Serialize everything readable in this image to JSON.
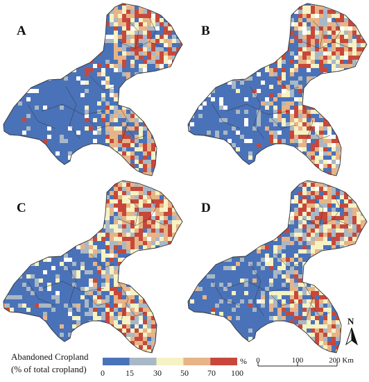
{
  "panels": [
    {
      "id": "A",
      "label": "A",
      "weights": [
        0.62,
        0.1,
        0.08,
        0.08,
        0.07,
        0.05
      ]
    },
    {
      "id": "B",
      "label": "B",
      "weights": [
        0.48,
        0.13,
        0.1,
        0.1,
        0.12,
        0.07
      ]
    },
    {
      "id": "C",
      "label": "C",
      "weights": [
        0.4,
        0.16,
        0.2,
        0.14,
        0.08,
        0.02
      ]
    },
    {
      "id": "D",
      "label": "D",
      "weights": [
        0.52,
        0.16,
        0.17,
        0.1,
        0.04,
        0.01
      ]
    }
  ],
  "legend": {
    "title_line1": "Abandoned Cropland",
    "title_line2": "(% of total cropland)",
    "unit": "%",
    "ticks": [
      "0",
      "15",
      "30",
      "50",
      "70",
      "100"
    ],
    "bins": [
      {
        "range": "0-15",
        "color": "#4a72b8"
      },
      {
        "range": "15-30",
        "color": "#a9b8c6"
      },
      {
        "range": "30-50",
        "color": "#f5f2c3"
      },
      {
        "range": "50-70",
        "color": "#e7b487"
      },
      {
        "range": "70-100",
        "color": "#c7483a"
      }
    ],
    "nodata_color": "#ffffff"
  },
  "scale_bar": {
    "ticks": [
      "0",
      "100",
      "200 Km"
    ]
  },
  "north_arrow": {
    "label": "N",
    "icon": "north-arrow-icon"
  },
  "colors": {
    "boundary": "#333333",
    "grid": "#ffffff"
  }
}
